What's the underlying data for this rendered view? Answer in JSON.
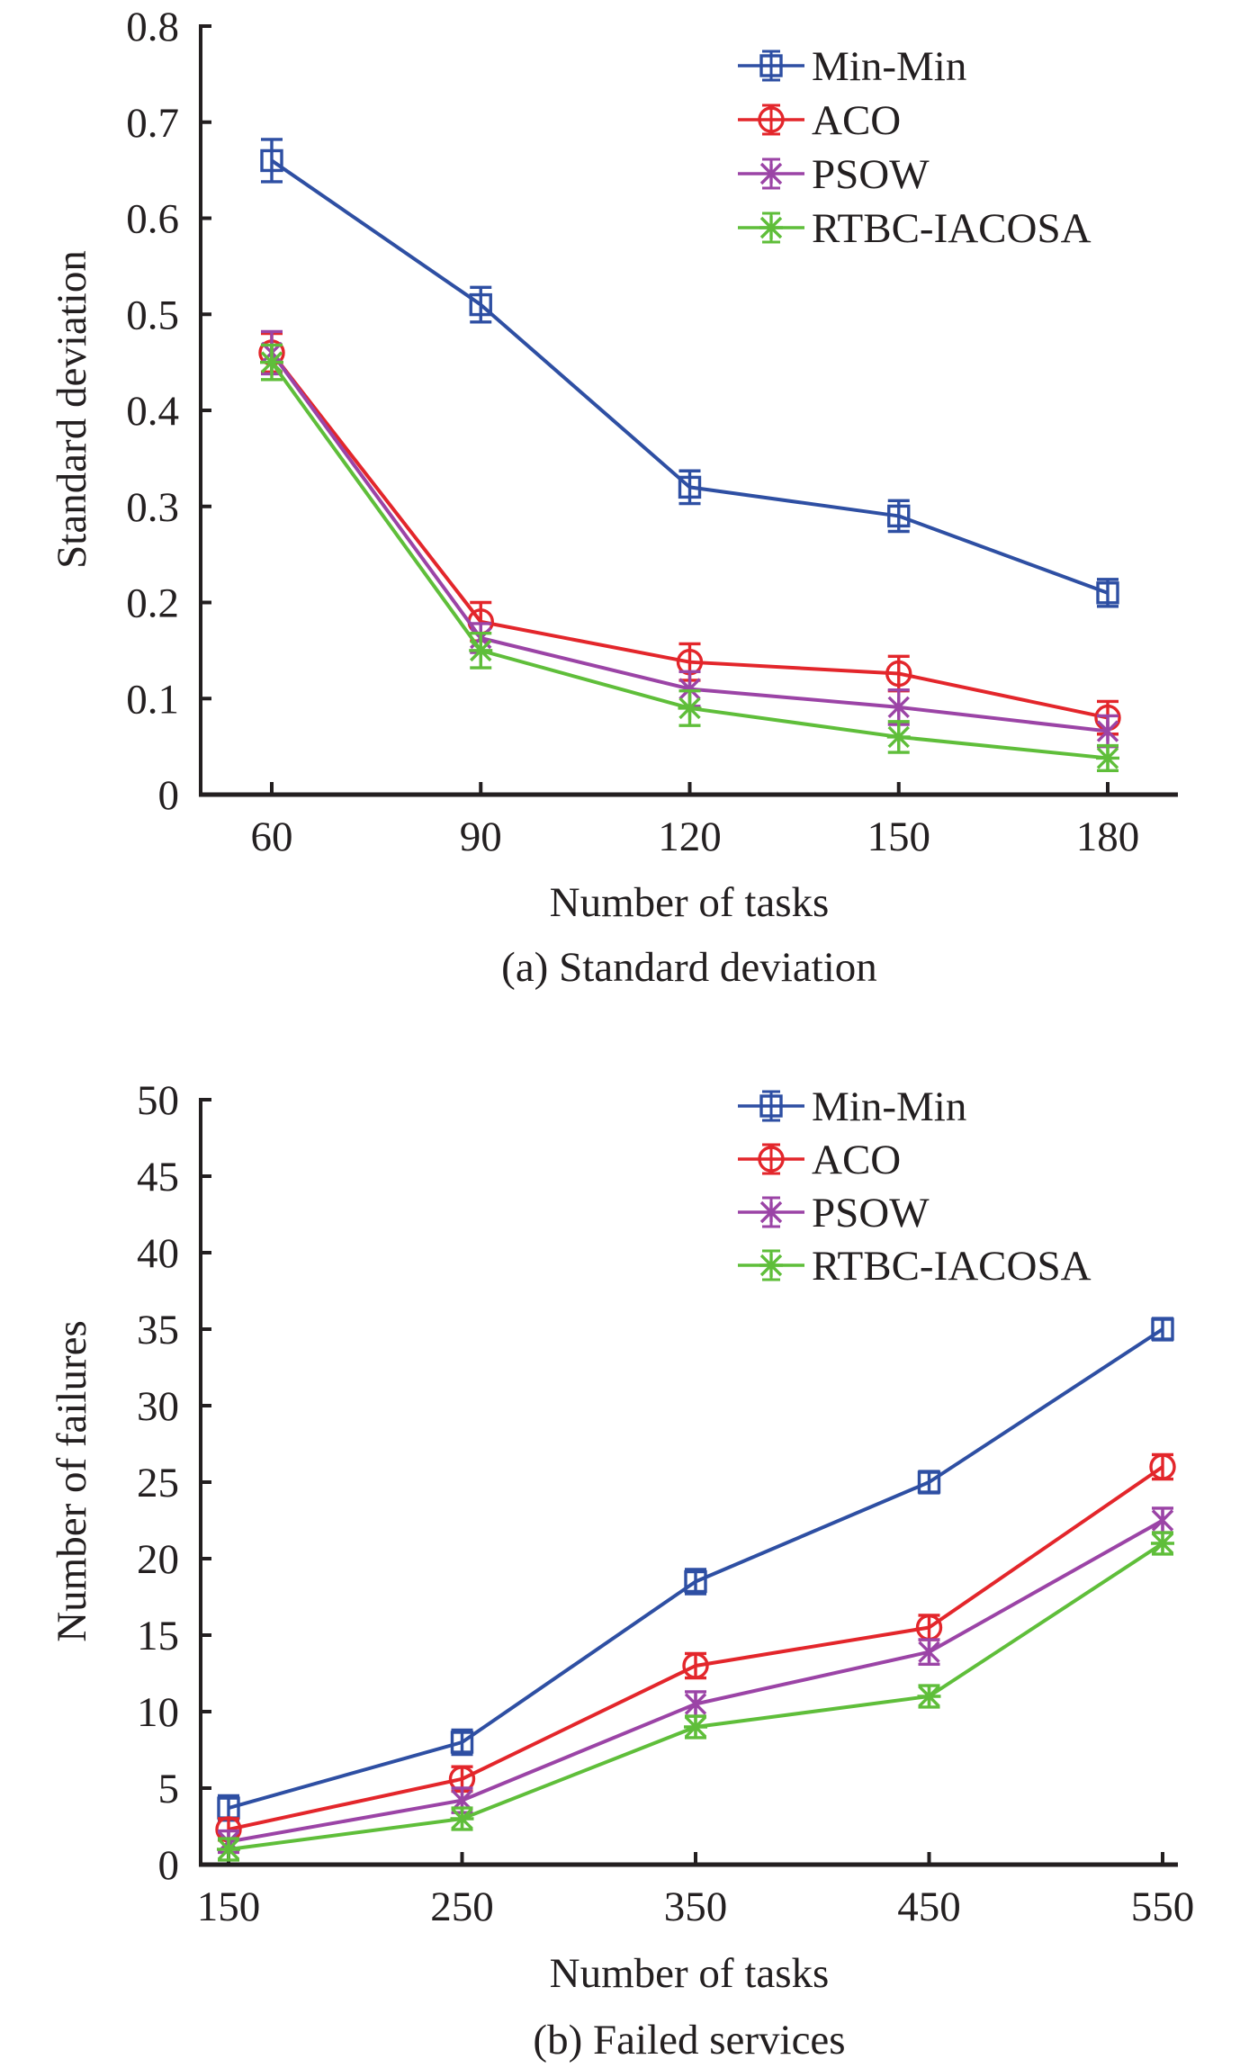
{
  "chart_data": [
    {
      "type": "line",
      "title": "",
      "caption": "(a) Standard deviation",
      "xlabel": "Number of tasks",
      "ylabel": "Standard deviation",
      "x": [
        60,
        90,
        120,
        150,
        180
      ],
      "xticks": [
        "60",
        "90",
        "120",
        "150",
        "180"
      ],
      "yticks": [
        "0",
        "0.1",
        "0.2",
        "0.3",
        "0.4",
        "0.5",
        "0.6",
        "0.7",
        "0.8"
      ],
      "ylim": [
        0,
        0.8
      ],
      "xlim": [
        50,
        195
      ],
      "grid": false,
      "legend_position": "top-right",
      "error_bars": true,
      "series": [
        {
          "name": "Min-Min",
          "color": "#2e4fa3",
          "marker": "square",
          "values": [
            0.66,
            0.51,
            0.32,
            0.29,
            0.21
          ],
          "errors": [
            0.022,
            0.018,
            0.017,
            0.016,
            0.014
          ]
        },
        {
          "name": "ACO",
          "color": "#e3262b",
          "marker": "circle",
          "values": [
            0.46,
            0.18,
            0.138,
            0.126,
            0.08
          ],
          "errors": [
            0.02,
            0.02,
            0.019,
            0.018,
            0.017
          ]
        },
        {
          "name": "PSOW",
          "color": "#9b44a6",
          "marker": "x-star",
          "values": [
            0.46,
            0.163,
            0.11,
            0.091,
            0.066
          ],
          "errors": [
            0.022,
            0.015,
            0.018,
            0.018,
            0.016
          ]
        },
        {
          "name": "RTBC-IACOSA",
          "color": "#5fbe3a",
          "marker": "asterisk",
          "values": [
            0.45,
            0.15,
            0.09,
            0.06,
            0.038
          ],
          "errors": [
            0.018,
            0.018,
            0.018,
            0.016,
            0.013
          ]
        }
      ]
    },
    {
      "type": "line",
      "title": "",
      "caption": "(b) Failed services",
      "xlabel": "Number of tasks",
      "ylabel": "Number of failures",
      "x": [
        150,
        250,
        350,
        450,
        550
      ],
      "xticks": [
        "150",
        "250",
        "350",
        "450",
        "550"
      ],
      "yticks": [
        "0",
        "5",
        "10",
        "15",
        "20",
        "25",
        "30",
        "35",
        "40",
        "45",
        "50"
      ],
      "ylim": [
        0,
        50
      ],
      "xlim": [
        140,
        555
      ],
      "grid": false,
      "legend_position": "top-right",
      "error_bars": true,
      "series": [
        {
          "name": "Min-Min",
          "color": "#2e4fa3",
          "marker": "square",
          "values": [
            3.7,
            8.0,
            18.5,
            25.0,
            35.0
          ],
          "errors": [
            0.8,
            0.8,
            0.8,
            0.7,
            0.7
          ]
        },
        {
          "name": "ACO",
          "color": "#e3262b",
          "marker": "circle",
          "values": [
            2.3,
            5.6,
            13.0,
            15.5,
            26.0
          ],
          "errors": [
            0.7,
            0.8,
            0.8,
            0.8,
            0.8
          ]
        },
        {
          "name": "PSOW",
          "color": "#9b44a6",
          "marker": "x-star",
          "values": [
            1.5,
            4.2,
            10.5,
            13.9,
            22.5
          ],
          "errors": [
            0.7,
            0.8,
            0.8,
            0.8,
            0.8
          ]
        },
        {
          "name": "RTBC-IACOSA",
          "color": "#5fbe3a",
          "marker": "asterisk",
          "values": [
            1.0,
            3.0,
            9.0,
            11.0,
            21.0
          ],
          "errors": [
            0.7,
            0.7,
            0.7,
            0.7,
            0.7
          ]
        }
      ]
    }
  ]
}
